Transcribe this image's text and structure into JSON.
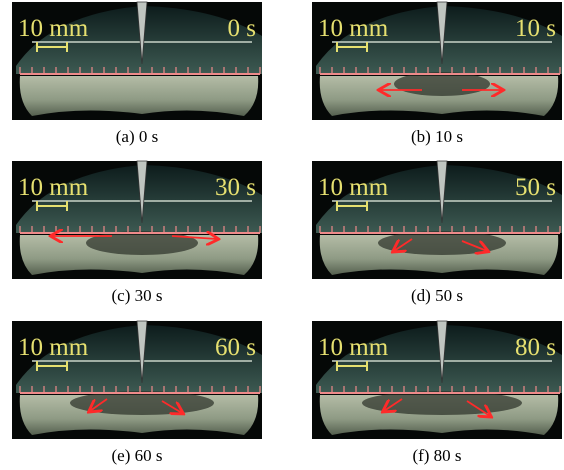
{
  "panels": [
    {
      "scale_label": "10 mm",
      "time_label": "0  s",
      "caption": "(a) 0 s"
    },
    {
      "scale_label": "10 mm",
      "time_label": "10 s",
      "caption": "(b) 10 s"
    },
    {
      "scale_label": "10 mm",
      "time_label": "30 s",
      "caption": "(c) 30 s"
    },
    {
      "scale_label": "10 mm",
      "time_label": "50 s",
      "caption": "(d) 50 s"
    },
    {
      "scale_label": "10 mm",
      "time_label": "60 s",
      "caption": "(e) 60 s"
    },
    {
      "scale_label": "10 mm",
      "time_label": "80 s",
      "caption": "(f) 80 s"
    }
  ]
}
